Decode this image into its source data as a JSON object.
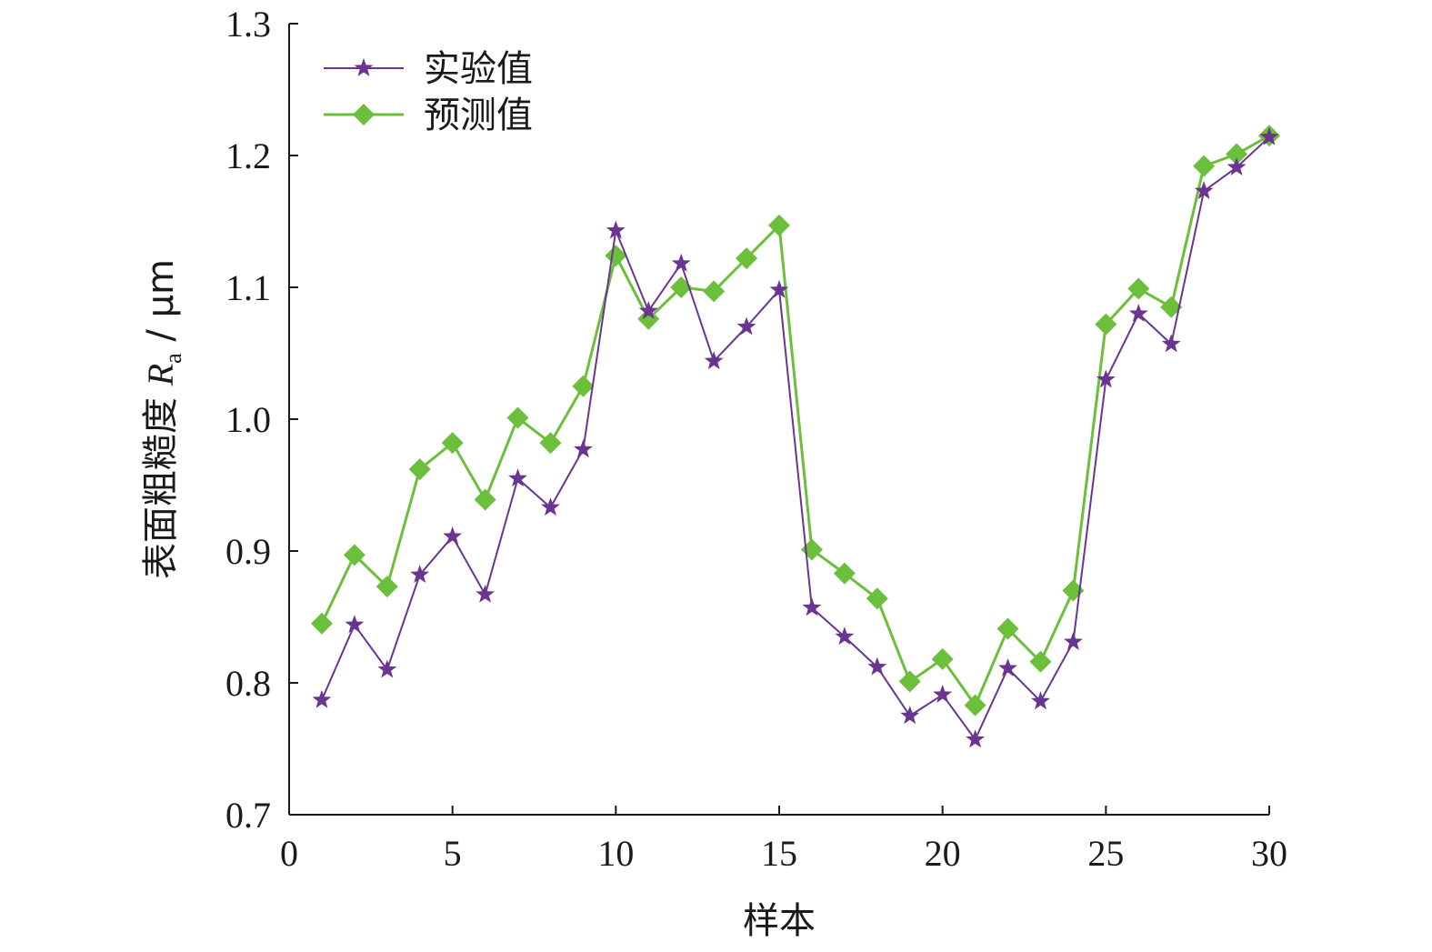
{
  "chart_data": {
    "type": "line",
    "xlabel": "样本",
    "ylabel": {
      "prefix": "表面粗糙度 ",
      "symbol": "R",
      "subscript": "a",
      "unit": " / μm"
    },
    "xlim": [
      0,
      30
    ],
    "ylim": [
      0.7,
      1.3
    ],
    "xticks": [
      "0",
      "5",
      "10",
      "15",
      "20",
      "25",
      "30"
    ],
    "yticks": [
      "0.7",
      "0.8",
      "0.9",
      "1.0",
      "1.1",
      "1.2",
      "1.3"
    ],
    "grid": false,
    "legend_position": "top-left",
    "x": [
      1,
      2,
      3,
      4,
      5,
      6,
      7,
      8,
      9,
      10,
      11,
      12,
      13,
      14,
      15,
      16,
      17,
      18,
      19,
      20,
      21,
      22,
      23,
      24,
      25,
      26,
      27,
      28,
      29,
      30
    ],
    "series": [
      {
        "name": "实验值",
        "color": "#6a3591",
        "marker": "star",
        "values": [
          0.787,
          0.844,
          0.81,
          0.882,
          0.911,
          0.867,
          0.955,
          0.933,
          0.977,
          1.143,
          1.082,
          1.118,
          1.044,
          1.07,
          1.098,
          0.857,
          0.835,
          0.812,
          0.775,
          0.791,
          0.757,
          0.811,
          0.786,
          0.831,
          1.03,
          1.08,
          1.057,
          1.173,
          1.191,
          1.214
        ]
      },
      {
        "name": "预测值",
        "color": "#6cbf3b",
        "marker": "diamond",
        "values": [
          0.845,
          0.897,
          0.873,
          0.962,
          0.982,
          0.939,
          1.001,
          0.982,
          1.025,
          1.124,
          1.076,
          1.1,
          1.097,
          1.122,
          1.147,
          0.901,
          0.883,
          0.864,
          0.801,
          0.818,
          0.783,
          0.841,
          0.816,
          0.87,
          1.072,
          1.099,
          1.085,
          1.192,
          1.201,
          1.215
        ]
      }
    ]
  }
}
